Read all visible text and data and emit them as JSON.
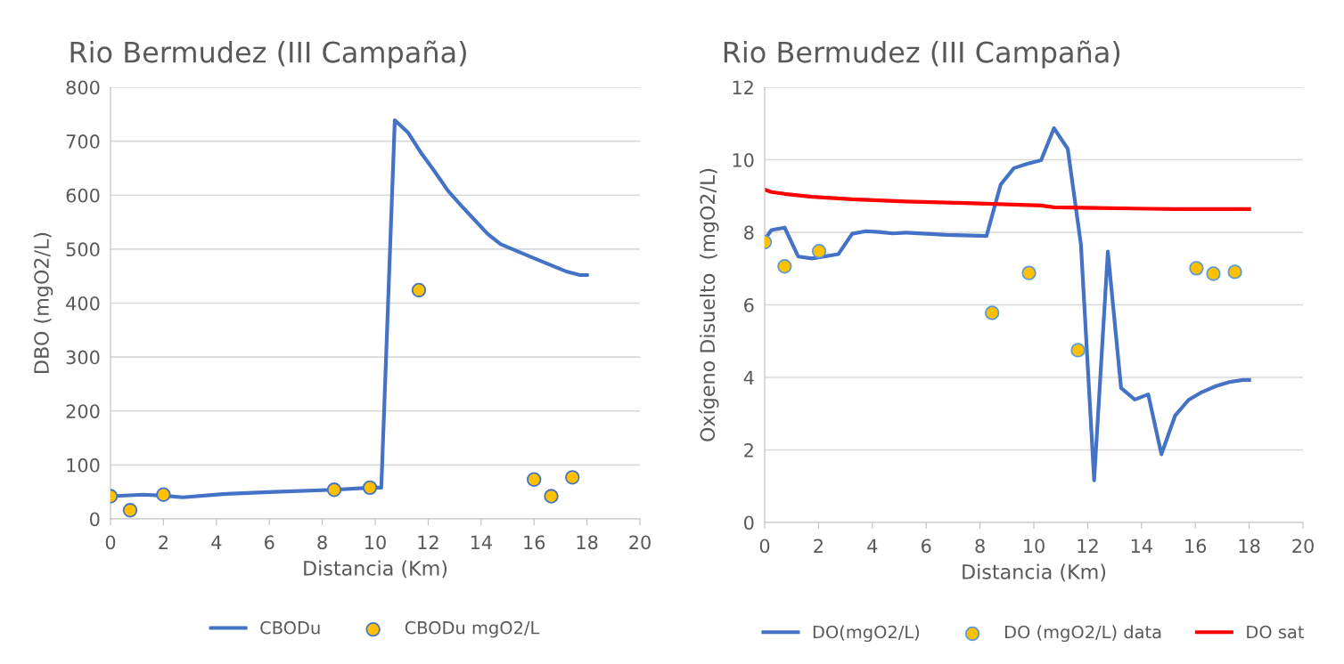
{
  "chart_data": [
    {
      "type": "line",
      "title": "Rio Bermudez (III Campaña)",
      "xlabel": "Distancia (Km)",
      "ylabel": "DBO (mgO2/L)",
      "xlim": [
        0,
        20
      ],
      "xticks": [
        0,
        2,
        4,
        6,
        8,
        10,
        12,
        14,
        16,
        18,
        20
      ],
      "ylim": [
        0,
        800
      ],
      "yticks": [
        0,
        100,
        200,
        300,
        400,
        500,
        600,
        700,
        800
      ],
      "grid": "y",
      "legend": "bottom",
      "series": [
        {
          "name": "CBODu",
          "color": "#4472c4",
          "marker": "none",
          "x": [
            0,
            1.25,
            2.0,
            2.73,
            4.25,
            6.17,
            8.45,
            9.82,
            10.23,
            10.74,
            11.24,
            11.75,
            12.23,
            12.75,
            13.26,
            14.25,
            14.74,
            16.0,
            17.25,
            17.73,
            18.0
          ],
          "values": [
            42,
            45,
            43,
            40,
            46,
            50,
            54,
            58,
            58,
            739,
            716,
            677,
            645,
            608,
            580,
            528,
            509,
            483,
            458,
            452,
            452
          ]
        },
        {
          "name": "CBODu mgO2/L",
          "type": "scatter",
          "color": "#ffc000",
          "marker": "circle",
          "x": [
            0,
            0.74,
            2.0,
            8.45,
            9.8,
            11.65,
            16.0,
            16.65,
            17.45
          ],
          "values": [
            42,
            16,
            45,
            54,
            58,
            424,
            73,
            42,
            77
          ]
        }
      ]
    },
    {
      "type": "line",
      "title": "Rio Bermudez (III Campaña)",
      "xlabel": "Distancia (Km)",
      "ylabel": "Oxígeno Disuelto  (mgO2/L)",
      "xlim": [
        0,
        20
      ],
      "xticks": [
        0,
        2,
        4,
        6,
        8,
        10,
        12,
        14,
        16,
        18,
        20
      ],
      "ylim": [
        0,
        12
      ],
      "yticks": [
        0,
        2,
        4,
        6,
        8,
        10,
        12
      ],
      "grid": "y",
      "legend": "bottom",
      "series": [
        {
          "name": "DO(mgO2/L)",
          "color": "#4472c4",
          "marker": "none",
          "x": [
            0,
            0.25,
            0.74,
            1.25,
            1.76,
            2.74,
            3.25,
            3.76,
            4.25,
            4.75,
            5.26,
            6.76,
            8.24,
            8.77,
            9.26,
            9.76,
            10.27,
            10.75,
            11.26,
            11.75,
            12.24,
            12.75,
            13.24,
            13.75,
            14.25,
            14.74,
            15.25,
            15.75,
            16.26,
            16.77,
            17.26,
            17.77,
            18.0
          ],
          "values": [
            7.8,
            8.06,
            8.13,
            7.33,
            7.28,
            7.4,
            7.96,
            8.03,
            8.01,
            7.97,
            7.99,
            7.93,
            7.9,
            9.32,
            9.77,
            9.89,
            9.99,
            10.87,
            10.3,
            7.66,
            1.16,
            7.47,
            3.71,
            3.39,
            3.53,
            1.88,
            2.95,
            3.38,
            3.6,
            3.76,
            3.87,
            3.93,
            3.93
          ]
        },
        {
          "name": "DO (mgO2/L) data",
          "type": "scatter",
          "color": "#ffc000",
          "marker": "circle",
          "x": [
            0,
            0.74,
            2.02,
            8.45,
            9.82,
            11.64,
            16.04,
            16.67,
            17.47
          ],
          "values": [
            7.73,
            7.06,
            7.48,
            5.78,
            6.88,
            4.75,
            7.01,
            6.86,
            6.91
          ]
        },
        {
          "name": "DO sat",
          "color": "#ff0000",
          "marker": "none",
          "x": [
            0,
            0.25,
            0.74,
            1.76,
            3.25,
            5.26,
            7.74,
            10.27,
            10.75,
            12.26,
            14.25,
            15.25,
            18.0
          ],
          "values": [
            9.18,
            9.11,
            9.06,
            8.98,
            8.91,
            8.85,
            8.8,
            8.74,
            8.69,
            8.67,
            8.65,
            8.64,
            8.64
          ]
        }
      ]
    }
  ]
}
